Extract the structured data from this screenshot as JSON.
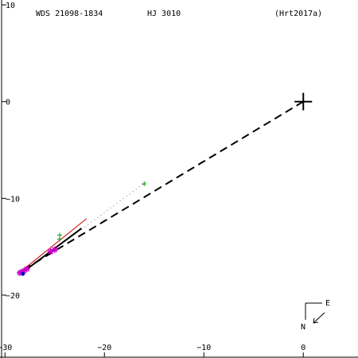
{
  "chart_data": {
    "type": "scatter",
    "header": {
      "wds": "WDS 21098-1834",
      "discoverer": "HJ 3010",
      "reference": "(Hrt2017a)"
    },
    "xlim": [
      -30.5,
      5.5
    ],
    "ylim": [
      -26.5,
      10.5
    ],
    "xticks": [
      -30,
      -20,
      -10,
      0
    ],
    "yticks": [
      10,
      0,
      -10,
      -20
    ],
    "xtick_labels": [
      "−30",
      "−20",
      "−10",
      "0"
    ],
    "ytick_labels": [
      "10",
      "0",
      "−10",
      "−20"
    ],
    "primary": {
      "x": 0,
      "y": 0
    },
    "orbit_dashed": [
      [
        0,
        0
      ],
      [
        -28.5,
        -17.6
      ]
    ],
    "fit_dotted": [
      [
        -15.8,
        -8.3
      ],
      [
        -28.3,
        -17.7
      ]
    ],
    "fit_black": [
      [
        -22.3,
        -13.1
      ],
      [
        -28.3,
        -17.7
      ]
    ],
    "fit_red": [
      [
        -21.8,
        -12.1
      ],
      [
        -28.2,
        -17.4
      ]
    ],
    "green_points": [
      [
        -16,
        -8.5
      ],
      [
        -24.5,
        -13.8
      ],
      [
        -24.5,
        -14.2
      ]
    ],
    "magenta_points": [
      [
        -25,
        -15.3
      ],
      [
        -25.4,
        -15.5
      ],
      [
        -27.8,
        -17.3
      ],
      [
        -28.1,
        -17.5
      ],
      [
        -28.3,
        -17.6
      ],
      [
        -28.5,
        -17.7
      ]
    ],
    "blue_points": [
      [
        -28.2,
        -17.8
      ]
    ],
    "compass": {
      "east": "E",
      "north": "N"
    },
    "colors": {
      "green": "#009900",
      "magenta": "#cc00cc",
      "red": "#cc0000",
      "blue": "#0000cc",
      "black": "#000000"
    }
  }
}
